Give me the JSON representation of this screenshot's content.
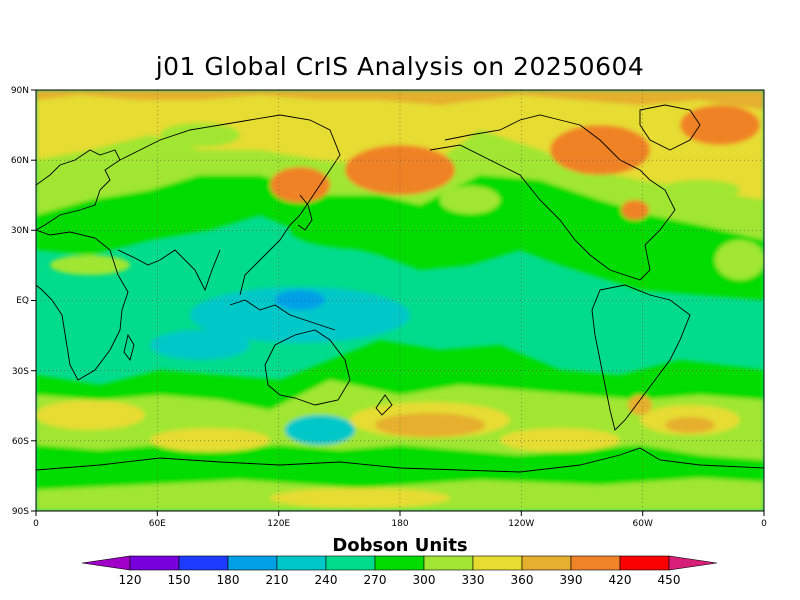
{
  "title": "j01 Global CrIS Analysis on 20250604",
  "colorbar": {
    "title": "Dobson Units",
    "levels": [
      "120",
      "150",
      "180",
      "210",
      "240",
      "270",
      "300",
      "330",
      "360",
      "390",
      "420",
      "450"
    ],
    "colors": [
      "#a000c8",
      "#7800dc",
      "#1e3cff",
      "#00a0e6",
      "#00c8c8",
      "#00dc8c",
      "#00dc00",
      "#a0e632",
      "#e6dc32",
      "#e6af2d",
      "#f08228",
      "#fa0000",
      "#d71e78"
    ]
  },
  "map": {
    "lat_labels": [
      "90N",
      "60N",
      "30N",
      "EQ",
      "30S",
      "60S",
      "90S"
    ],
    "lon_labels": [
      "0",
      "60E",
      "120E",
      "180",
      "120W",
      "60W",
      "0"
    ],
    "field_palette": {
      "green": "#00dc00",
      "teal": "#00dc8c",
      "cyan": "#00c8c8",
      "blue": "#00a0e6",
      "lime": "#a0e632",
      "yellow": "#e6dc32",
      "tan": "#e6af2d",
      "orange": "#f08228"
    }
  }
}
